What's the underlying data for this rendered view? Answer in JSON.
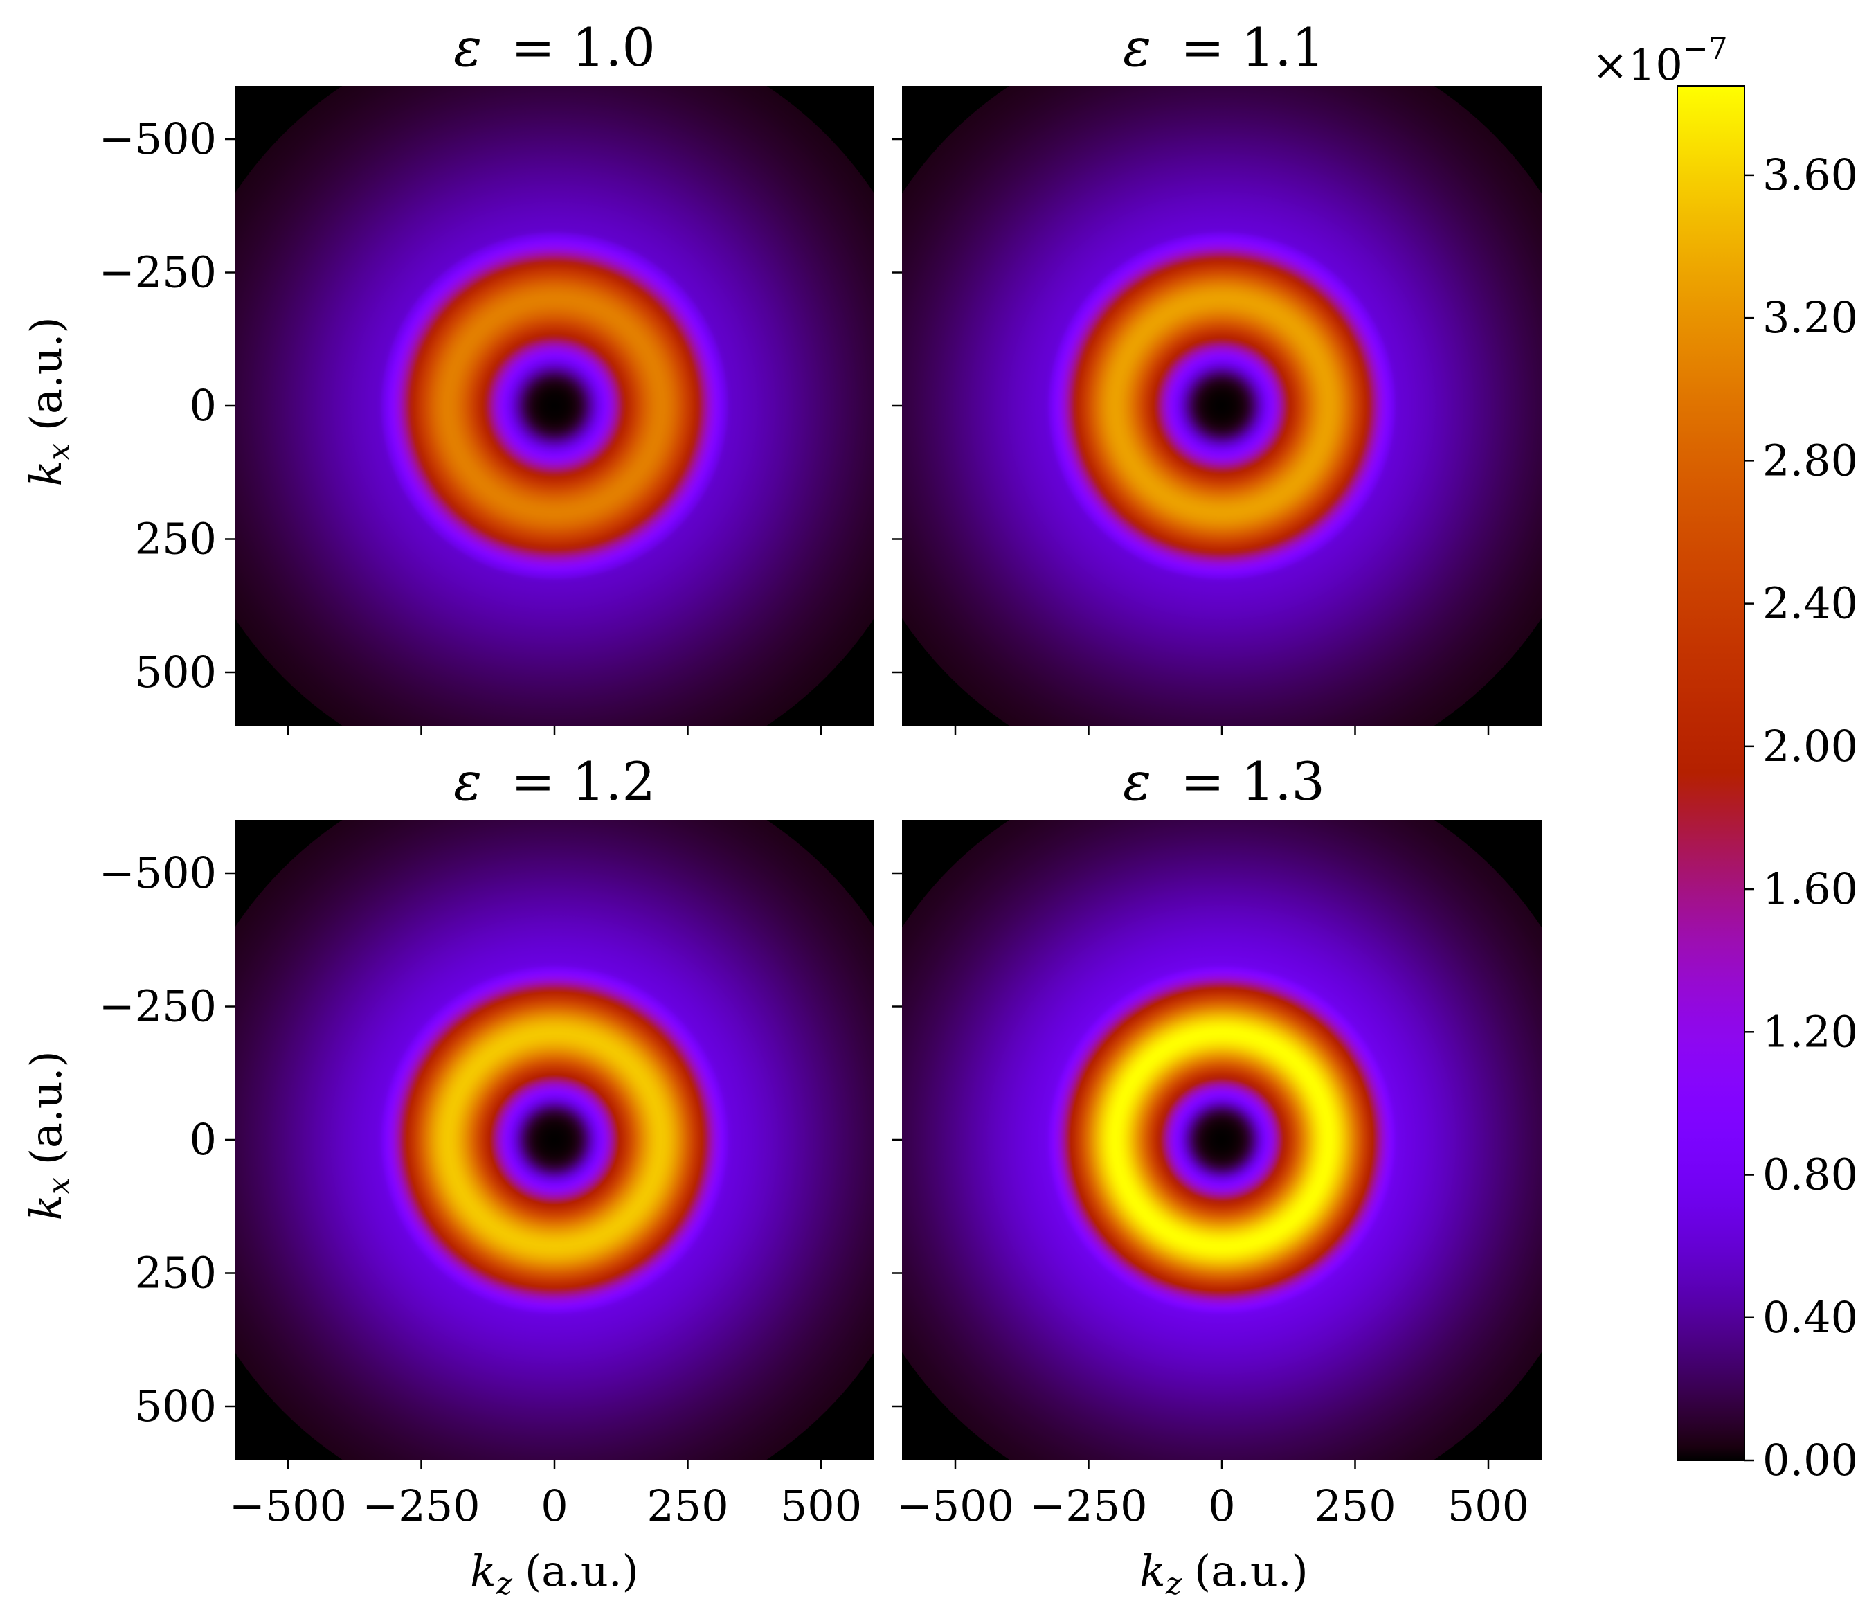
{
  "chart_data": {
    "type": "heatmap",
    "layout": "2x2",
    "colormap": "gnuplot",
    "xlabel": "k_z (a.u.)",
    "ylabel": "k_x (a.u.)",
    "xlabel_var": "k",
    "xlabel_sub": "z",
    "ylabel_var": "k",
    "ylabel_sub": "x",
    "axis_unit": "(a.u.)",
    "xlim": [
      -600,
      600
    ],
    "ylim": [
      -600,
      600
    ],
    "x_ticks": [
      -500,
      -250,
      0,
      250,
      500
    ],
    "y_ticks": [
      -500,
      -250,
      0,
      250,
      500
    ],
    "x_tick_labels": [
      "−500",
      "−250",
      "0",
      "250",
      "500"
    ],
    "y_tick_labels": [
      "500",
      "250",
      "0",
      "−250",
      "−500"
    ],
    "colorbar": {
      "min": 0.0,
      "max": 3.85,
      "scale_label_base": "×10",
      "scale_label_exp": "−7",
      "ticks": [
        0.0,
        0.4,
        0.8,
        1.2,
        1.6,
        2.0,
        2.4,
        2.8,
        3.2,
        3.6
      ],
      "tick_labels": [
        "0.00",
        "0.40",
        "0.80",
        "1.20",
        "1.60",
        "2.00",
        "2.40",
        "2.80",
        "3.20",
        "3.60"
      ]
    },
    "panels": [
      {
        "title_symbol": "ε",
        "title": "ε = 1.0",
        "title_value": "= 1.0",
        "peak_value": 3.05,
        "ring_radius": 200,
        "ring_width": 100,
        "inner_ring_radius": 95
      },
      {
        "title_symbol": "ε",
        "title": "ε = 1.1",
        "title_value": "= 1.1",
        "peak_value": 3.3,
        "ring_radius": 200,
        "ring_width": 100,
        "inner_ring_radius": 95
      },
      {
        "title_symbol": "ε",
        "title": "ε = 1.2",
        "title_value": "= 1.2",
        "peak_value": 3.55,
        "ring_radius": 200,
        "ring_width": 100,
        "inner_ring_radius": 95
      },
      {
        "title_symbol": "ε",
        "title": "ε = 1.3",
        "title_value": "= 1.3",
        "peak_value": 3.85,
        "ring_radius": 200,
        "ring_width": 100,
        "inner_ring_radius": 95
      }
    ]
  }
}
